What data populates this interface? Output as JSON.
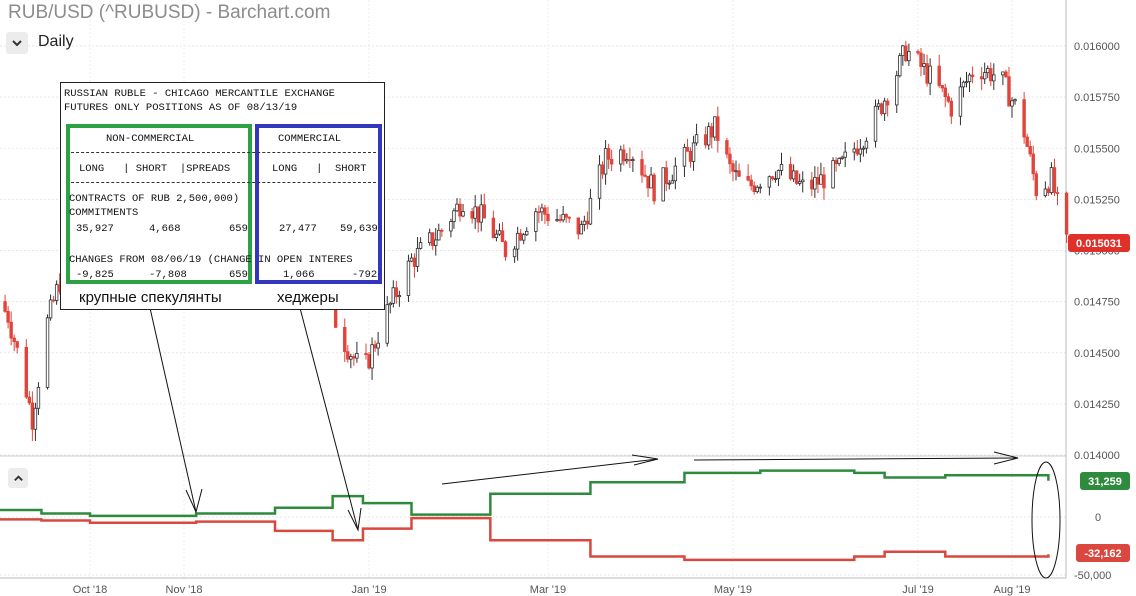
{
  "header": {
    "title": "RUB/USD (^RUBUSD) - Barchart.com",
    "period": "Daily"
  },
  "colors": {
    "up": "#2e2e2e",
    "down": "#e0443a",
    "green_line": "#2e8b3e",
    "red_line": "#d9473f",
    "noncommercial_box": "#2ca245",
    "commercial_box": "#3337c0",
    "last_price_bg": "#e0302a"
  },
  "price_axis": {
    "ticks": [
      "0.016000",
      "0.015750",
      "0.015500",
      "0.015250",
      "0.015000",
      "0.014750",
      "0.014500",
      "0.014250",
      "0.014000"
    ],
    "last_price": "0.015031"
  },
  "cot_axis": {
    "ticks": [
      "0",
      "-50,000"
    ],
    "green_last": "31,259",
    "red_last": "-32,162"
  },
  "x_axis": {
    "labels": [
      "Oct '18",
      "Nov '18",
      "Jan '19",
      "Mar '19",
      "May '19",
      "Jul '19",
      "Aug '19"
    ]
  },
  "cot_report": {
    "line1": "RUSSIAN RUBLE - CHICAGO MERCANTILE EXCHANGE",
    "line2": "FUTURES ONLY POSITIONS AS OF 08/13/19",
    "noncommercial_header": "NON-COMMERCIAL",
    "commercial_header": "COMMERCIAL",
    "nc_cols": "LONG   | SHORT  |SPREADS",
    "c_cols": "LONG   |  SHORT",
    "contracts_line": "CONTRACTS OF RUB 2,500,000)",
    "commitments_label": "COMMITMENTS",
    "commitments": {
      "nc_long": "35,927",
      "nc_short": "4,668",
      "nc_spreads": "659",
      "c_long": "27,477",
      "c_short": "59,639"
    },
    "changes_line": "CHANGES FROM 08/06/19 (CHANGE IN OPEN INTERES",
    "changes": {
      "nc_long": "-9,825",
      "nc_short": "-7,808",
      "nc_spreads": "659",
      "c_long": "1,066",
      "c_short": "-792"
    },
    "caption_speculators": "крупные спекулянты",
    "caption_hedgers": "хеджеры"
  },
  "chart_data": [
    {
      "type": "candlestick",
      "title": "RUB/USD (^RUBUSD) - Barchart.com",
      "period": "Daily",
      "ylim": [
        0.014,
        0.0161
      ],
      "x_range": [
        "2018-09-01",
        "2019-08-19"
      ],
      "last_price": 0.015031,
      "close_points": [
        {
          "d": "2018-09-01",
          "v": 0.01475
        },
        {
          "d": "2018-09-04",
          "v": 0.01468
        },
        {
          "d": "2018-09-08",
          "v": 0.01445
        },
        {
          "d": "2018-09-12",
          "v": 0.01418
        },
        {
          "d": "2018-09-17",
          "v": 0.01465
        },
        {
          "d": "2018-09-24",
          "v": 0.015
        },
        {
          "d": "2018-10-01",
          "v": 0.0152
        },
        {
          "d": "2018-10-08",
          "v": 0.01505
        },
        {
          "d": "2018-10-15",
          "v": 0.01525
        },
        {
          "d": "2018-10-25",
          "v": 0.01512
        },
        {
          "d": "2018-11-05",
          "v": 0.01495
        },
        {
          "d": "2018-11-20",
          "v": 0.015
        },
        {
          "d": "2018-12-01",
          "v": 0.01505
        },
        {
          "d": "2018-12-10",
          "v": 0.01495
        },
        {
          "d": "2018-12-17",
          "v": 0.0148
        },
        {
          "d": "2018-12-24",
          "v": 0.01455
        },
        {
          "d": "2018-12-30",
          "v": 0.0144
        },
        {
          "d": "2019-01-07",
          "v": 0.0147
        },
        {
          "d": "2019-01-15",
          "v": 0.01495
        },
        {
          "d": "2019-01-25",
          "v": 0.0151
        },
        {
          "d": "2019-02-01",
          "v": 0.01525
        },
        {
          "d": "2019-02-08",
          "v": 0.01515
        },
        {
          "d": "2019-02-15",
          "v": 0.015
        },
        {
          "d": "2019-02-25",
          "v": 0.0152
        },
        {
          "d": "2019-03-05",
          "v": 0.01515
        },
        {
          "d": "2019-03-12",
          "v": 0.0151
        },
        {
          "d": "2019-03-20",
          "v": 0.01545
        },
        {
          "d": "2019-03-28",
          "v": 0.0155
        },
        {
          "d": "2019-04-05",
          "v": 0.0153
        },
        {
          "d": "2019-04-15",
          "v": 0.01545
        },
        {
          "d": "2019-04-25",
          "v": 0.0156
        },
        {
          "d": "2019-04-30",
          "v": 0.0154
        },
        {
          "d": "2019-05-05",
          "v": 0.0153
        },
        {
          "d": "2019-05-15",
          "v": 0.0154
        },
        {
          "d": "2019-05-25",
          "v": 0.0153
        },
        {
          "d": "2019-06-05",
          "v": 0.0154
        },
        {
          "d": "2019-06-15",
          "v": 0.0156
        },
        {
          "d": "2019-06-22",
          "v": 0.0158
        },
        {
          "d": "2019-06-27",
          "v": 0.01598
        },
        {
          "d": "2019-07-05",
          "v": 0.01585
        },
        {
          "d": "2019-07-12",
          "v": 0.0157
        },
        {
          "d": "2019-07-20",
          "v": 0.0159
        },
        {
          "d": "2019-07-28",
          "v": 0.01585
        },
        {
          "d": "2019-08-04",
          "v": 0.01565
        },
        {
          "d": "2019-08-09",
          "v": 0.0153
        },
        {
          "d": "2019-08-14",
          "v": 0.01535
        },
        {
          "d": "2019-08-19",
          "v": 0.01503
        }
      ]
    },
    {
      "type": "line",
      "title": "",
      "ylim": [
        -50000,
        50000
      ],
      "series": [
        {
          "name": "",
          "color": "green",
          "points": [
            {
              "d": "2018-09-01",
              "v": 6000
            },
            {
              "d": "2018-09-15",
              "v": 3000
            },
            {
              "d": "2018-10-01",
              "v": 1000
            },
            {
              "d": "2018-11-05",
              "v": 3000
            },
            {
              "d": "2018-12-01",
              "v": 8000
            },
            {
              "d": "2018-12-20",
              "v": 18000
            },
            {
              "d": "2018-12-30",
              "v": 12000
            },
            {
              "d": "2019-01-15",
              "v": 2000
            },
            {
              "d": "2019-02-10",
              "v": 20000
            },
            {
              "d": "2019-03-15",
              "v": 30000
            },
            {
              "d": "2019-04-15",
              "v": 38000
            },
            {
              "d": "2019-05-10",
              "v": 40000
            },
            {
              "d": "2019-06-10",
              "v": 38000
            },
            {
              "d": "2019-06-20",
              "v": 34000
            },
            {
              "d": "2019-07-10",
              "v": 36000
            },
            {
              "d": "2019-08-13",
              "v": 31259
            }
          ]
        },
        {
          "name": "",
          "color": "red",
          "points": [
            {
              "d": "2018-09-01",
              "v": -2000
            },
            {
              "d": "2018-09-15",
              "v": -3000
            },
            {
              "d": "2018-10-01",
              "v": -5000
            },
            {
              "d": "2018-11-05",
              "v": -4000
            },
            {
              "d": "2018-12-01",
              "v": -12000
            },
            {
              "d": "2018-12-20",
              "v": -20000
            },
            {
              "d": "2018-12-30",
              "v": -10000
            },
            {
              "d": "2019-01-15",
              "v": -1000
            },
            {
              "d": "2019-02-10",
              "v": -20000
            },
            {
              "d": "2019-03-15",
              "v": -34000
            },
            {
              "d": "2019-04-15",
              "v": -37000
            },
            {
              "d": "2019-05-10",
              "v": -37000
            },
            {
              "d": "2019-06-10",
              "v": -34000
            },
            {
              "d": "2019-06-20",
              "v": -30000
            },
            {
              "d": "2019-07-10",
              "v": -34000
            },
            {
              "d": "2019-08-13",
              "v": -32162
            }
          ]
        }
      ]
    }
  ]
}
